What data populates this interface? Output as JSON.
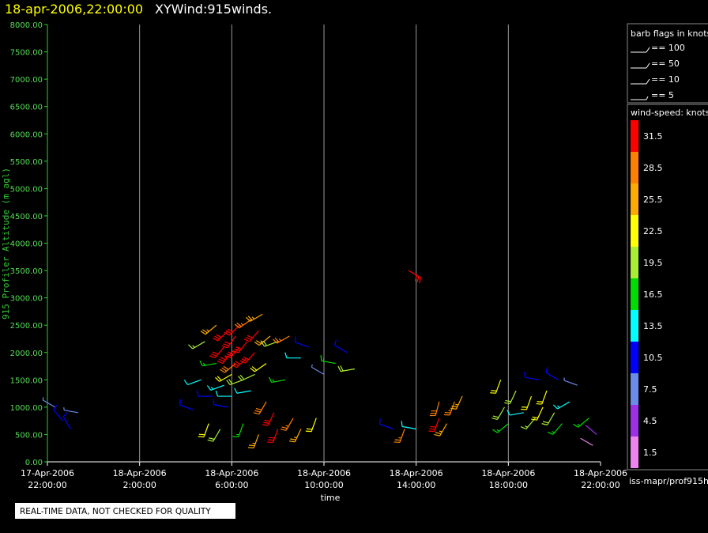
{
  "chart_data": {
    "type": "windbarb",
    "title": "18-apr-2006,22:00:00",
    "subtitle": "XYWind:915winds.",
    "y_label": "915 Profiler Altitude (m agl)",
    "x_label": "time",
    "note": "REAL-TIME DATA, NOT CHECKED FOR QUALITY",
    "source": "iss-mapr/prof915h",
    "xlim": [
      "2006-04-17T22:00",
      "2006-04-18T22:00"
    ],
    "xticks": [
      {
        "value": "2006-04-17T22:00",
        "label": [
          "17-Apr-2006",
          "22:00:00"
        ]
      },
      {
        "value": "2006-04-18T02:00",
        "label": [
          "18-Apr-2006",
          "2:00:00"
        ]
      },
      {
        "value": "2006-04-18T06:00",
        "label": [
          "18-Apr-2006",
          "6:00:00"
        ]
      },
      {
        "value": "2006-04-18T10:00",
        "label": [
          "18-Apr-2006",
          "10:00:00"
        ]
      },
      {
        "value": "2006-04-18T14:00",
        "label": [
          "18-Apr-2006",
          "14:00:00"
        ]
      },
      {
        "value": "2006-04-18T18:00",
        "label": [
          "18-Apr-2006",
          "18:00:00"
        ]
      },
      {
        "value": "2006-04-18T22:00",
        "label": [
          "18-Apr-2006",
          "22:00:00"
        ]
      }
    ],
    "ylim": [
      0,
      8000
    ],
    "yticks": [
      {
        "value": 0,
        "label": "0.00"
      },
      {
        "value": 500,
        "label": "500.00"
      },
      {
        "value": 1000,
        "label": "1000.00"
      },
      {
        "value": 1500,
        "label": "1500.00"
      },
      {
        "value": 2000,
        "label": "2000.00"
      },
      {
        "value": 2500,
        "label": "2500.00"
      },
      {
        "value": 3000,
        "label": "3000.00"
      },
      {
        "value": 3500,
        "label": "3500.00"
      },
      {
        "value": 4000,
        "label": "4000.00"
      },
      {
        "value": 4500,
        "label": "4500.00"
      },
      {
        "value": 5000,
        "label": "5000.00"
      },
      {
        "value": 5500,
        "label": "5500.00"
      },
      {
        "value": 6000,
        "label": "6000.00"
      },
      {
        "value": 6500,
        "label": "6500.00"
      },
      {
        "value": 7000,
        "label": "7000.00"
      },
      {
        "value": 7500,
        "label": "7500.00"
      },
      {
        "value": 8000,
        "label": "8000.00"
      }
    ],
    "grid": true,
    "barb_legend": {
      "title": "barb flags in knots",
      "entries": [
        "== 100",
        "== 50",
        "== 10",
        "== 5"
      ]
    },
    "colorbar": {
      "title": "wind-speed: knots",
      "levels": [
        1.5,
        4.5,
        7.5,
        10.5,
        13.5,
        16.5,
        19.5,
        22.5,
        25.5,
        28.5,
        31.5
      ],
      "colors": [
        "#ee82ee",
        "#9b30e6",
        "#6a8be8",
        "#0000ff",
        "#00ffff",
        "#00dd00",
        "#aaee33",
        "#ffff00",
        "#ffaa00",
        "#ff8000",
        "#ff0000"
      ]
    },
    "barbs": {
      "x": [
        "2006-04-17T22:20",
        "2006-04-17T22:40",
        "2006-04-17T23:00",
        "2006-04-17T23:20",
        "2006-04-18T04:20",
        "2006-04-18T04:40",
        "2006-04-18T04:50",
        "2006-04-18T05:00",
        "2006-04-18T05:10",
        "2006-04-18T05:20",
        "2006-04-18T05:20",
        "2006-04-18T05:30",
        "2006-04-18T05:40",
        "2006-04-18T05:40",
        "2006-04-18T05:50",
        "2006-04-18T05:50",
        "2006-04-18T06:00",
        "2006-04-18T06:00",
        "2006-04-18T06:00",
        "2006-04-18T06:10",
        "2006-04-18T06:10",
        "2006-04-18T06:20",
        "2006-04-18T06:20",
        "2006-04-18T06:30",
        "2006-04-18T06:30",
        "2006-04-18T06:40",
        "2006-04-18T06:40",
        "2006-04-18T06:50",
        "2006-04-18T06:50",
        "2006-04-18T07:00",
        "2006-04-18T07:00",
        "2006-04-18T07:10",
        "2006-04-18T07:10",
        "2006-04-18T07:20",
        "2006-04-18T07:30",
        "2006-04-18T07:30",
        "2006-04-18T07:40",
        "2006-04-18T07:50",
        "2006-04-18T08:00",
        "2006-04-18T08:00",
        "2006-04-18T08:20",
        "2006-04-18T08:30",
        "2006-04-18T08:40",
        "2006-04-18T09:00",
        "2006-04-18T09:00",
        "2006-04-18T09:20",
        "2006-04-18T09:40",
        "2006-04-18T10:00",
        "2006-04-18T10:30",
        "2006-04-18T11:00",
        "2006-04-18T11:20",
        "2006-04-18T13:40",
        "2006-04-18T13:00",
        "2006-04-18T13:30",
        "2006-04-18T14:00",
        "2006-04-18T15:00",
        "2006-04-18T15:00",
        "2006-04-18T15:20",
        "2006-04-18T15:40",
        "2006-04-18T16:00",
        "2006-04-18T17:40",
        "2006-04-18T17:50",
        "2006-04-18T18:00",
        "2006-04-18T18:20",
        "2006-04-18T18:40",
        "2006-04-18T19:00",
        "2006-04-18T19:10",
        "2006-04-18T19:20",
        "2006-04-18T19:30",
        "2006-04-18T19:40",
        "2006-04-18T20:00",
        "2006-04-18T20:10",
        "2006-04-18T20:20",
        "2006-04-18T20:40",
        "2006-04-18T21:00",
        "2006-04-18T21:30",
        "2006-04-18T21:50",
        "2006-04-18T21:40"
      ],
      "altitude": [
        1000,
        750,
        600,
        900,
        950,
        1500,
        2200,
        700,
        1200,
        2500,
        1800,
        600,
        2100,
        1400,
        2400,
        1000,
        2000,
        1600,
        1200,
        2300,
        1800,
        2500,
        2100,
        1500,
        700,
        2200,
        1900,
        2600,
        1300,
        2000,
        1600,
        2400,
        500,
        2700,
        1800,
        1100,
        2300,
        900,
        2200,
        600,
        1500,
        2300,
        800,
        1900,
        600,
        2100,
        800,
        1600,
        1800,
        2000,
        1700,
        3500,
        600,
        600,
        600,
        800,
        1100,
        700,
        1100,
        1200,
        1500,
        1000,
        700,
        1300,
        900,
        1200,
        800,
        1500,
        1000,
        1300,
        900,
        1500,
        700,
        1100,
        1400,
        800,
        500,
        300
      ],
      "speed": [
        8,
        10,
        11,
        7,
        10,
        14,
        19,
        22,
        12,
        27,
        17,
        20,
        32,
        15,
        34,
        11,
        35,
        24,
        13,
        33,
        30,
        32,
        35,
        20,
        18,
        34,
        31,
        29,
        14,
        33,
        21,
        32,
        26,
        27,
        23,
        30,
        25,
        33,
        20,
        31,
        17,
        28,
        29,
        14,
        27,
        12,
        24,
        9,
        16,
        12,
        20,
        32,
        10,
        28,
        13,
        31,
        30,
        27,
        28,
        25,
        22,
        20,
        17,
        21,
        14,
        23,
        19,
        10,
        22,
        24,
        20,
        11,
        18,
        15,
        9,
        16,
        4,
        2
      ],
      "direction": [
        300,
        320,
        330,
        280,
        290,
        250,
        240,
        200,
        270,
        230,
        260,
        210,
        220,
        250,
        225,
        280,
        220,
        240,
        270,
        215,
        230,
        225,
        220,
        250,
        200,
        218,
        228,
        235,
        260,
        222,
        245,
        220,
        200,
        240,
        235,
        210,
        230,
        205,
        250,
        200,
        260,
        240,
        210,
        270,
        205,
        290,
        200,
        300,
        280,
        300,
        260,
        120,
        290,
        200,
        280,
        200,
        195,
        210,
        200,
        205,
        200,
        210,
        230,
        205,
        260,
        200,
        220,
        280,
        205,
        200,
        210,
        300,
        220,
        240,
        290,
        230,
        310,
        300
      ]
    }
  }
}
